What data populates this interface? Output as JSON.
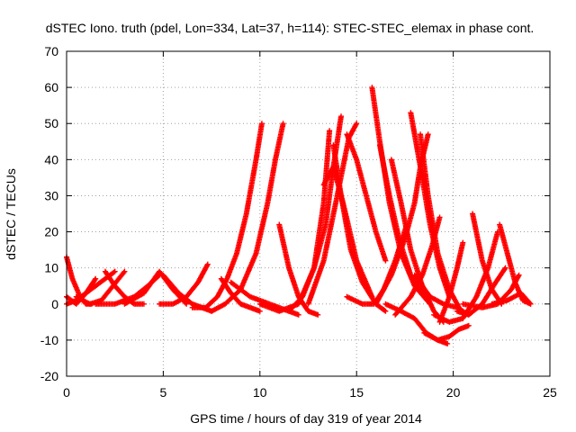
{
  "chart_data": {
    "type": "scatter",
    "title": "dSTEC Iono. truth (pdel, Lon=334, Lat=37, h=114): STEC-STEC_elemax in phase cont.",
    "xlabel": "GPS time / hours of day 319 of year 2014",
    "ylabel": "dSTEC  / TECUs",
    "xlim": [
      0,
      25
    ],
    "ylim": [
      -20,
      70
    ],
    "xticks": [
      0,
      5,
      10,
      15,
      20,
      25
    ],
    "yticks": [
      -20,
      -10,
      0,
      10,
      20,
      30,
      40,
      50,
      60,
      70
    ],
    "x_tick_labels": [
      "0",
      "5",
      "10",
      "15",
      "20",
      "25"
    ],
    "y_tick_labels": [
      "-20",
      "-10",
      "0",
      "10",
      "20",
      "30",
      "40",
      "50",
      "60",
      "70"
    ],
    "grid": true,
    "marker": "+",
    "color": "#ff0000",
    "series": [
      {
        "x": [
          0.0,
          0.3,
          0.7,
          1.0,
          1.3
        ],
        "y": [
          13,
          7,
          2,
          0,
          0
        ]
      },
      {
        "x": [
          0.0,
          0.5,
          1.0,
          1.5
        ],
        "y": [
          2,
          0,
          3,
          7
        ]
      },
      {
        "x": [
          0.0,
          0.5,
          1.0,
          1.5,
          2.0,
          2.5
        ],
        "y": [
          0,
          1,
          3,
          5,
          7,
          9
        ]
      },
      {
        "x": [
          0.5,
          1.2,
          1.8,
          2.4,
          3.0
        ],
        "y": [
          2,
          0,
          1,
          5,
          9
        ]
      },
      {
        "x": [
          2.0,
          2.5,
          3.0,
          3.5,
          4.0
        ],
        "y": [
          9,
          5,
          2,
          0,
          0
        ]
      },
      {
        "x": [
          1.5,
          2.5,
          3.5,
          4.2,
          4.8
        ],
        "y": [
          0,
          0,
          2,
          5,
          8
        ]
      },
      {
        "x": [
          3.0,
          4.0,
          4.8,
          5.5,
          6.2
        ],
        "y": [
          0,
          3,
          9,
          4,
          0
        ]
      },
      {
        "x": [
          4.8,
          5.5,
          6.2,
          6.8,
          7.3
        ],
        "y": [
          0,
          0,
          2,
          6,
          11
        ]
      },
      {
        "x": [
          5.0,
          5.8,
          6.5,
          7.0,
          7.5
        ],
        "y": [
          8,
          3,
          0,
          -1,
          -2
        ]
      },
      {
        "x": [
          6.5,
          7.2,
          7.8,
          8.3,
          8.8,
          9.3,
          9.8,
          10.1
        ],
        "y": [
          -1,
          -1,
          2,
          7,
          14,
          25,
          40,
          50
        ]
      },
      {
        "x": [
          7.5,
          8.2,
          9.0,
          9.8,
          10.4,
          10.8,
          11.2
        ],
        "y": [
          -2,
          0,
          4,
          14,
          28,
          40,
          50
        ]
      },
      {
        "x": [
          8.0,
          8.5,
          9.0,
          9.5,
          10.0
        ],
        "y": [
          7,
          3,
          0,
          -1,
          -2
        ]
      },
      {
        "x": [
          8.5,
          9.5,
          10.5,
          11.5,
          12.0
        ],
        "y": [
          6,
          2,
          0,
          -2,
          -3
        ]
      },
      {
        "x": [
          11.0,
          11.5,
          12.0,
          12.5,
          13.0
        ],
        "y": [
          22,
          10,
          2,
          -2,
          -3
        ]
      },
      {
        "x": [
          10.0,
          11.0,
          12.0,
          12.8,
          13.3,
          13.6
        ],
        "y": [
          0,
          -2,
          0,
          10,
          28,
          48
        ]
      },
      {
        "x": [
          11.5,
          12.2,
          12.8,
          13.4,
          13.8,
          14.2
        ],
        "y": [
          -2,
          2,
          10,
          22,
          38,
          52
        ]
      },
      {
        "x": [
          13.3,
          13.8,
          14.3,
          15.0,
          15.8
        ],
        "y": [
          33,
          38,
          28,
          12,
          2
        ]
      },
      {
        "x": [
          13.8,
          14.2,
          14.7,
          15.3,
          16.0,
          16.5
        ],
        "y": [
          44,
          30,
          15,
          6,
          0,
          -2
        ]
      },
      {
        "x": [
          12.5,
          13.3,
          14.0,
          14.6,
          15.0
        ],
        "y": [
          0,
          12,
          30,
          46,
          50
        ]
      },
      {
        "x": [
          14.5,
          15.0,
          15.5,
          16.0,
          16.5
        ],
        "y": [
          47,
          40,
          30,
          20,
          12
        ]
      },
      {
        "x": [
          14.5,
          15.3,
          15.9,
          16.4,
          17.0,
          17.6
        ],
        "y": [
          2,
          0,
          0,
          4,
          12,
          22
        ]
      },
      {
        "x": [
          15.8,
          16.2,
          16.7,
          17.3,
          18.0,
          18.8
        ],
        "y": [
          60,
          45,
          28,
          14,
          5,
          0
        ]
      },
      {
        "x": [
          16.2,
          16.7,
          17.2,
          17.8,
          18.5
        ],
        "y": [
          44,
          30,
          18,
          8,
          2
        ]
      },
      {
        "x": [
          16.8,
          17.3,
          17.8,
          18.4,
          19.0,
          19.5
        ],
        "y": [
          40,
          28,
          15,
          5,
          -2,
          -5
        ]
      },
      {
        "x": [
          16.5,
          17.3,
          18.0,
          18.6,
          19.2,
          19.7
        ],
        "y": [
          0,
          -2,
          -4,
          -8,
          -10,
          -11
        ]
      },
      {
        "x": [
          17.8,
          18.3,
          18.8,
          19.3,
          19.8
        ],
        "y": [
          53,
          38,
          22,
          10,
          2
        ]
      },
      {
        "x": [
          18.3,
          18.7,
          19.2,
          19.8,
          20.4
        ],
        "y": [
          47,
          30,
          14,
          4,
          -2
        ]
      },
      {
        "x": [
          16.0,
          16.8,
          17.5,
          18.0,
          18.3,
          18.7
        ],
        "y": [
          0,
          8,
          18,
          28,
          38,
          47
        ]
      },
      {
        "x": [
          17.0,
          17.8,
          18.4,
          18.9,
          19.3
        ],
        "y": [
          -3,
          2,
          8,
          16,
          24
        ]
      },
      {
        "x": [
          18.5,
          19.2,
          19.8,
          20.3,
          20.8
        ],
        "y": [
          -8,
          -10,
          -9,
          -7,
          -6
        ]
      },
      {
        "x": [
          19.3,
          19.8,
          20.2,
          20.5
        ],
        "y": [
          -5,
          2,
          10,
          17
        ]
      },
      {
        "x": [
          19.0,
          19.8,
          20.5,
          21.2,
          21.8,
          22.3
        ],
        "y": [
          -3,
          -5,
          -4,
          2,
          10,
          20
        ]
      },
      {
        "x": [
          20.2,
          20.8,
          21.5,
          22.2,
          22.7
        ],
        "y": [
          -2,
          -3,
          0,
          6,
          10
        ]
      },
      {
        "x": [
          21.0,
          21.5,
          22.0,
          22.5
        ],
        "y": [
          25,
          12,
          4,
          0
        ]
      },
      {
        "x": [
          22.4,
          22.8,
          23.2,
          23.6,
          24.0
        ],
        "y": [
          22,
          14,
          6,
          1,
          0
        ]
      },
      {
        "x": [
          20.5,
          21.5,
          22.3,
          23.0,
          23.4
        ],
        "y": [
          0,
          -1,
          0,
          4,
          8
        ]
      },
      {
        "x": [
          18.0,
          18.8,
          19.5,
          20.2,
          20.8
        ],
        "y": [
          8,
          2,
          0,
          -1,
          -3
        ]
      },
      {
        "x": [
          22.0,
          22.8,
          23.5,
          24.0
        ],
        "y": [
          0,
          1,
          3,
          0
        ]
      }
    ]
  }
}
